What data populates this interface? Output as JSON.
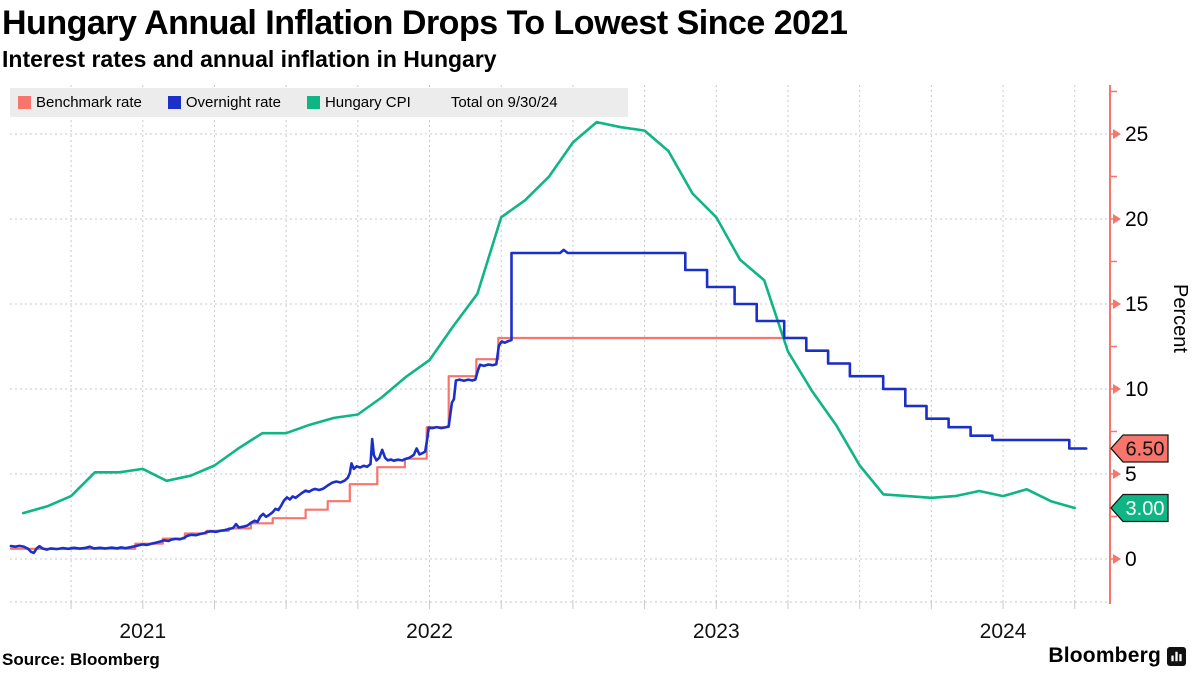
{
  "header": {
    "title": "Hungary Annual Inflation Drops To Lowest Since 2021",
    "subtitle": "Interest rates and annual inflation in Hungary"
  },
  "legend": {
    "items": [
      {
        "label": "Benchmark rate",
        "color": "#f8756c"
      },
      {
        "label": "Overnight rate",
        "color": "#1b30c8"
      },
      {
        "label": "Hungary CPI",
        "color": "#10b585"
      }
    ],
    "note": "Total on 9/30/24"
  },
  "footer": {
    "source": "Source: Bloomberg",
    "brand": "Bloomberg"
  },
  "chart_data": {
    "type": "line",
    "title": "Hungary Annual Inflation Drops To Lowest Since 2021",
    "xlabel": "",
    "ylabel": "Percent",
    "grid": true,
    "axis_color": "#f8756c",
    "grid_color": "#c9c9c9",
    "xlim": [
      2021.037,
      2024.873
    ],
    "ylim": [
      -2.53,
      27.88
    ],
    "x_year_labels": [
      "2021",
      "2022",
      "2023",
      "2024"
    ],
    "x_year_values": [
      2021,
      2022,
      2023,
      2024
    ],
    "quarter_grid_start": 2021.25,
    "quarter_grid_end": 2024.75,
    "y_ticks": [
      0,
      5,
      10,
      15,
      20,
      25
    ],
    "y_minor_ticks": [
      2.5,
      7.5,
      12.5,
      17.5,
      22.5,
      27.5
    ],
    "end_labels": [
      {
        "text": "6.50",
        "value": 6.5,
        "color": "#f8756c",
        "text_color": "#111111"
      },
      {
        "text": "3.00",
        "value": 3.0,
        "color": "#10b585",
        "text_color": "#ffffff"
      }
    ],
    "series": [
      {
        "name": "Benchmark rate",
        "color": "#f8756c",
        "mode": "step",
        "width": 2.2,
        "end_t": 2024.79,
        "points": [
          [
            2021.04,
            0.6
          ],
          [
            2021.474,
            0.9
          ],
          [
            2021.57,
            1.2
          ],
          [
            2021.647,
            1.5
          ],
          [
            2021.723,
            1.65
          ],
          [
            2021.8,
            1.8
          ],
          [
            2021.877,
            2.1
          ],
          [
            2021.953,
            2.4
          ],
          [
            2022.068,
            2.9
          ],
          [
            2022.145,
            3.4
          ],
          [
            2022.222,
            4.4
          ],
          [
            2022.318,
            5.4
          ],
          [
            2022.414,
            5.9
          ],
          [
            2022.49,
            7.75
          ],
          [
            2022.567,
            10.75
          ],
          [
            2022.663,
            11.75
          ],
          [
            2022.74,
            13.0
          ],
          [
            2023.814,
            12.25
          ],
          [
            2023.89,
            11.5
          ],
          [
            2023.966,
            10.75
          ],
          [
            2024.082,
            10.0
          ],
          [
            2024.159,
            9.0
          ],
          [
            2024.233,
            8.25
          ],
          [
            2024.31,
            7.75
          ],
          [
            2024.387,
            7.25
          ],
          [
            2024.463,
            7.0
          ],
          [
            2024.731,
            6.5
          ]
        ]
      },
      {
        "name": "Hungary CPI",
        "color": "#10b585",
        "mode": "line",
        "width": 2.6,
        "points": [
          [
            2021.083,
            2.7
          ],
          [
            2021.167,
            3.1
          ],
          [
            2021.25,
            3.7
          ],
          [
            2021.333,
            5.1
          ],
          [
            2021.417,
            5.1
          ],
          [
            2021.5,
            5.3
          ],
          [
            2021.583,
            4.6
          ],
          [
            2021.667,
            4.9
          ],
          [
            2021.75,
            5.5
          ],
          [
            2021.833,
            6.5
          ],
          [
            2021.917,
            7.4
          ],
          [
            2022.0,
            7.4
          ],
          [
            2022.083,
            7.9
          ],
          [
            2022.167,
            8.3
          ],
          [
            2022.25,
            8.5
          ],
          [
            2022.333,
            9.5
          ],
          [
            2022.417,
            10.7
          ],
          [
            2022.5,
            11.7
          ],
          [
            2022.583,
            13.7
          ],
          [
            2022.667,
            15.6
          ],
          [
            2022.75,
            20.1
          ],
          [
            2022.833,
            21.1
          ],
          [
            2022.917,
            22.5
          ],
          [
            2023.0,
            24.5
          ],
          [
            2023.083,
            25.7
          ],
          [
            2023.167,
            25.4
          ],
          [
            2023.25,
            25.2
          ],
          [
            2023.333,
            24.0
          ],
          [
            2023.417,
            21.5
          ],
          [
            2023.5,
            20.1
          ],
          [
            2023.583,
            17.6
          ],
          [
            2023.667,
            16.4
          ],
          [
            2023.75,
            12.2
          ],
          [
            2023.833,
            9.9
          ],
          [
            2023.917,
            7.9
          ],
          [
            2024.0,
            5.5
          ],
          [
            2024.083,
            3.8
          ],
          [
            2024.167,
            3.7
          ],
          [
            2024.25,
            3.6
          ],
          [
            2024.333,
            3.7
          ],
          [
            2024.417,
            4.0
          ],
          [
            2024.5,
            3.7
          ],
          [
            2024.583,
            4.1
          ],
          [
            2024.667,
            3.4
          ],
          [
            2024.75,
            3.0
          ]
        ]
      },
      {
        "name": "Overnight rate",
        "color": "#1b30c8",
        "mode": "line",
        "width": 2.6,
        "points": [
          [
            2021.04,
            0.76
          ],
          [
            2021.055,
            0.72
          ],
          [
            2021.07,
            0.77
          ],
          [
            2021.085,
            0.73
          ],
          [
            2021.1,
            0.6
          ],
          [
            2021.11,
            0.42
          ],
          [
            2021.12,
            0.36
          ],
          [
            2021.13,
            0.62
          ],
          [
            2021.14,
            0.75
          ],
          [
            2021.15,
            0.62
          ],
          [
            2021.165,
            0.55
          ],
          [
            2021.18,
            0.62
          ],
          [
            2021.2,
            0.58
          ],
          [
            2021.22,
            0.64
          ],
          [
            2021.24,
            0.6
          ],
          [
            2021.26,
            0.66
          ],
          [
            2021.28,
            0.61
          ],
          [
            2021.3,
            0.65
          ],
          [
            2021.315,
            0.72
          ],
          [
            2021.33,
            0.62
          ],
          [
            2021.35,
            0.66
          ],
          [
            2021.37,
            0.62
          ],
          [
            2021.39,
            0.67
          ],
          [
            2021.41,
            0.63
          ],
          [
            2021.425,
            0.68
          ],
          [
            2021.44,
            0.64
          ],
          [
            2021.455,
            0.69
          ],
          [
            2021.47,
            0.74
          ],
          [
            2021.485,
            0.8
          ],
          [
            2021.5,
            0.86
          ],
          [
            2021.515,
            0.83
          ],
          [
            2021.53,
            0.9
          ],
          [
            2021.545,
            0.95
          ],
          [
            2021.56,
            1.02
          ],
          [
            2021.575,
            1.1
          ],
          [
            2021.59,
            1.06
          ],
          [
            2021.6,
            1.14
          ],
          [
            2021.615,
            1.19
          ],
          [
            2021.63,
            1.16
          ],
          [
            2021.645,
            1.25
          ],
          [
            2021.655,
            1.36
          ],
          [
            2021.67,
            1.42
          ],
          [
            2021.685,
            1.4
          ],
          [
            2021.7,
            1.47
          ],
          [
            2021.715,
            1.52
          ],
          [
            2021.725,
            1.6
          ],
          [
            2021.74,
            1.63
          ],
          [
            2021.755,
            1.6
          ],
          [
            2021.77,
            1.66
          ],
          [
            2021.785,
            1.7
          ],
          [
            2021.8,
            1.76
          ],
          [
            2021.815,
            1.82
          ],
          [
            2021.825,
            2.05
          ],
          [
            2021.835,
            1.85
          ],
          [
            2021.85,
            1.9
          ],
          [
            2021.865,
            1.97
          ],
          [
            2021.877,
            2.12
          ],
          [
            2021.89,
            2.25
          ],
          [
            2021.9,
            2.18
          ],
          [
            2021.91,
            2.5
          ],
          [
            2021.92,
            2.65
          ],
          [
            2021.93,
            2.48
          ],
          [
            2021.94,
            2.58
          ],
          [
            2021.953,
            2.75
          ],
          [
            2021.963,
            2.95
          ],
          [
            2021.973,
            2.88
          ],
          [
            2021.983,
            3.15
          ],
          [
            2021.993,
            3.45
          ],
          [
            2022.003,
            3.62
          ],
          [
            2022.013,
            3.5
          ],
          [
            2022.023,
            3.68
          ],
          [
            2022.033,
            3.6
          ],
          [
            2022.045,
            3.76
          ],
          [
            2022.055,
            3.88
          ],
          [
            2022.068,
            4.02
          ],
          [
            2022.08,
            3.96
          ],
          [
            2022.09,
            4.06
          ],
          [
            2022.1,
            4.12
          ],
          [
            2022.115,
            4.06
          ],
          [
            2022.13,
            4.14
          ],
          [
            2022.145,
            4.32
          ],
          [
            2022.16,
            4.48
          ],
          [
            2022.175,
            4.56
          ],
          [
            2022.19,
            4.5
          ],
          [
            2022.205,
            4.62
          ],
          [
            2022.215,
            4.78
          ],
          [
            2022.222,
            5.05
          ],
          [
            2022.228,
            5.62
          ],
          [
            2022.236,
            5.3
          ],
          [
            2022.246,
            5.45
          ],
          [
            2022.258,
            5.38
          ],
          [
            2022.27,
            5.48
          ],
          [
            2022.282,
            5.42
          ],
          [
            2022.294,
            5.58
          ],
          [
            2022.3,
            7.05
          ],
          [
            2022.306,
            6.1
          ],
          [
            2022.315,
            5.8
          ],
          [
            2022.325,
            5.95
          ],
          [
            2022.335,
            6.42
          ],
          [
            2022.345,
            5.95
          ],
          [
            2022.355,
            5.8
          ],
          [
            2022.365,
            5.85
          ],
          [
            2022.375,
            5.78
          ],
          [
            2022.39,
            5.84
          ],
          [
            2022.405,
            5.8
          ],
          [
            2022.415,
            5.88
          ],
          [
            2022.43,
            5.96
          ],
          [
            2022.445,
            6.12
          ],
          [
            2022.455,
            6.5
          ],
          [
            2022.465,
            6.15
          ],
          [
            2022.475,
            6.22
          ],
          [
            2022.485,
            6.32
          ],
          [
            2022.492,
            7.05
          ],
          [
            2022.497,
            7.72
          ],
          [
            2022.51,
            7.7
          ],
          [
            2022.525,
            7.76
          ],
          [
            2022.54,
            7.7
          ],
          [
            2022.555,
            7.74
          ],
          [
            2022.567,
            7.8
          ],
          [
            2022.578,
            9.2
          ],
          [
            2022.585,
            9.4
          ],
          [
            2022.592,
            10.5
          ],
          [
            2022.605,
            10.55
          ],
          [
            2022.62,
            10.48
          ],
          [
            2022.635,
            10.55
          ],
          [
            2022.65,
            10.5
          ],
          [
            2022.66,
            10.56
          ],
          [
            2022.668,
            11.05
          ],
          [
            2022.676,
            11.42
          ],
          [
            2022.69,
            11.36
          ],
          [
            2022.705,
            11.44
          ],
          [
            2022.72,
            11.4
          ],
          [
            2022.733,
            11.46
          ],
          [
            2022.742,
            12.55
          ],
          [
            2022.752,
            12.8
          ],
          [
            2022.762,
            12.72
          ],
          [
            2022.772,
            12.8
          ],
          [
            2022.786,
            12.88
          ],
          [
            2022.786,
            18.0
          ],
          [
            2022.86,
            18.0
          ],
          [
            2022.955,
            18.0
          ],
          [
            2022.968,
            18.18
          ],
          [
            2022.982,
            18.0
          ],
          [
            2023.392,
            18.0
          ],
          [
            2023.392,
            17.0
          ],
          [
            2023.468,
            17.0
          ],
          [
            2023.468,
            16.0
          ],
          [
            2023.564,
            16.0
          ],
          [
            2023.564,
            15.0
          ],
          [
            2023.641,
            15.0
          ],
          [
            2023.641,
            14.0
          ],
          [
            2023.737,
            14.0
          ],
          [
            2023.737,
            13.0
          ],
          [
            2023.814,
            13.0
          ],
          [
            2023.814,
            12.25
          ],
          [
            2023.89,
            12.25
          ],
          [
            2023.89,
            11.5
          ],
          [
            2023.966,
            11.5
          ],
          [
            2023.966,
            10.75
          ],
          [
            2024.082,
            10.75
          ],
          [
            2024.082,
            10.0
          ],
          [
            2024.159,
            10.0
          ],
          [
            2024.159,
            9.0
          ],
          [
            2024.233,
            9.0
          ],
          [
            2024.233,
            8.25
          ],
          [
            2024.31,
            8.25
          ],
          [
            2024.31,
            7.75
          ],
          [
            2024.387,
            7.75
          ],
          [
            2024.387,
            7.25
          ],
          [
            2024.463,
            7.25
          ],
          [
            2024.463,
            7.0
          ],
          [
            2024.731,
            7.0
          ],
          [
            2024.731,
            6.5
          ],
          [
            2024.79,
            6.5
          ]
        ]
      }
    ]
  }
}
